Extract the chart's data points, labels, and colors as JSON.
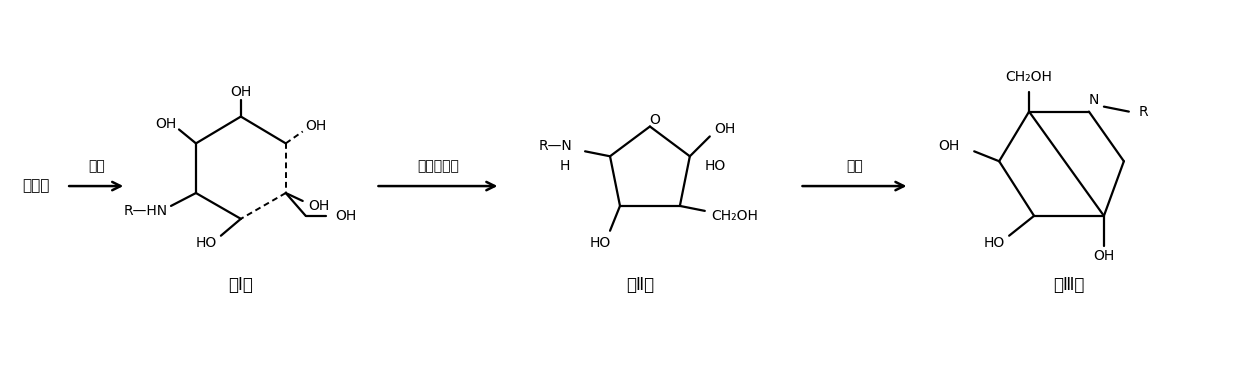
{
  "bg_color": "#ffffff",
  "line_color": "#000000",
  "text_color": "#000000",
  "figsize": [
    12.4,
    3.91
  ],
  "dpi": 100,
  "step1_label": "胺化",
  "step2_label": "微生物氧化",
  "step3_label": "氢化",
  "reactant_label": "葡萄糖",
  "compound_I_label": "（Ⅰ）",
  "compound_II_label": "（Ⅱ）",
  "compound_III_label": "（Ⅲ）"
}
